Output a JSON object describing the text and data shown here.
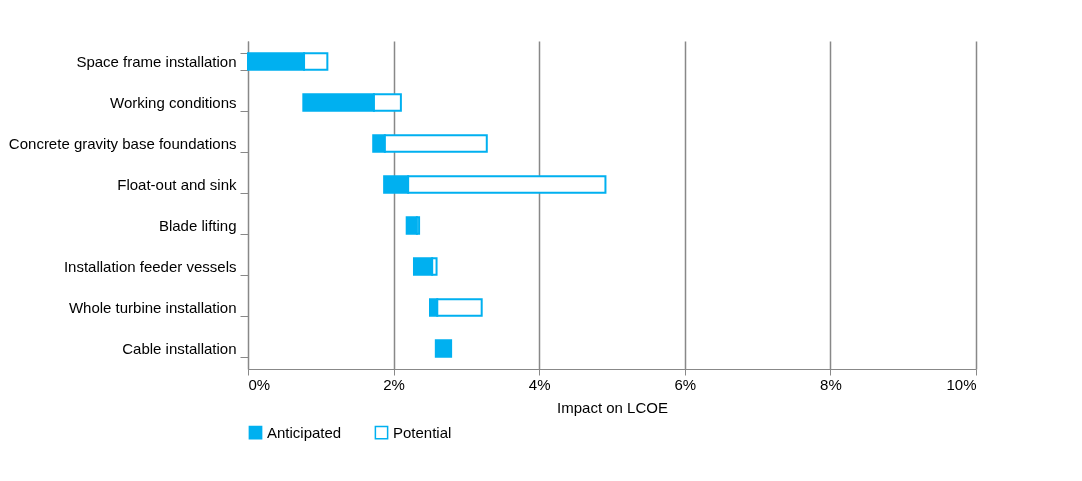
{
  "chart_data": {
    "type": "bar",
    "orientation": "horizontal",
    "categories": [
      "Space frame installation",
      "Working conditions",
      "Concrete gravity base foundations",
      "Float-out and sink",
      "Blade lifting",
      "Installation feeder vessels",
      "Whole turbine installation",
      "Cable installation"
    ],
    "series": [
      {
        "name": "Anticipated",
        "color": "#00b0f0",
        "base": [
          0,
          0.76,
          1.72,
          1.87,
          2.18,
          2.28,
          2.5,
          2.58
        ],
        "values": [
          0.77,
          0.97,
          0.16,
          0.33,
          0.14,
          0.25,
          0.1,
          0.21
        ]
      },
      {
        "name": "Potential",
        "color": "#ffffff",
        "base": [
          0.77,
          1.73,
          1.88,
          2.2,
          2.32,
          2.53,
          2.6,
          null
        ],
        "values": [
          0.32,
          0.37,
          1.4,
          2.71,
          0.03,
          0.06,
          0.61,
          null
        ]
      }
    ],
    "xlabel": "Impact on LCOE",
    "xlim": [
      0,
      10
    ],
    "xticks": [
      {
        "value": 0,
        "label": "0%"
      },
      {
        "value": 2,
        "label": "2%"
      },
      {
        "value": 4,
        "label": "4%"
      },
      {
        "value": 6,
        "label": "6%"
      },
      {
        "value": 8,
        "label": "8%"
      },
      {
        "value": 10,
        "label": "10%"
      }
    ],
    "grid": "x",
    "legend": "bottom"
  }
}
